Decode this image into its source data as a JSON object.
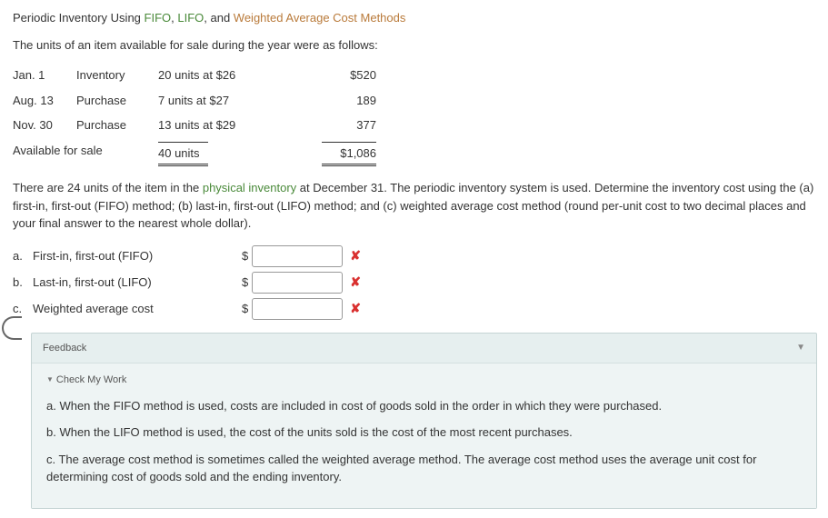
{
  "title": {
    "prefix": "Periodic Inventory Using ",
    "fifo": "FIFO",
    "sep": ", ",
    "lifo": "LIFO",
    "sep2": ", and ",
    "wac": "Weighted Average Cost Methods"
  },
  "intro": "The units of an item available for sale during the year were as follows:",
  "table": {
    "rows": [
      {
        "date": "Jan. 1",
        "desc": "Inventory",
        "units": "20 units at $26",
        "amount": "$520"
      },
      {
        "date": "Aug. 13",
        "desc": "Purchase",
        "units": "7 units at $27",
        "amount": "189"
      },
      {
        "date": "Nov. 30",
        "desc": "Purchase",
        "units": "13 units at $29",
        "amount": "377"
      }
    ],
    "total": {
      "label": "Available for sale",
      "units": "40 units",
      "amount": "$1,086"
    }
  },
  "question": {
    "p1a": "There are 24 units of the item in the ",
    "phys": "physical inventory",
    "p1b": " at December 31. The periodic inventory system is used. Determine the inventory cost using the (a) first-in, first-out (FIFO) method; (b) last-in, first-out (LIFO) method; and (c) weighted average cost method (round per-unit cost to two decimal places and your final answer to the nearest whole dollar)."
  },
  "answers": [
    {
      "letter": "a.",
      "label": "First-in, first-out (FIFO)",
      "value": "",
      "status": "wrong"
    },
    {
      "letter": "b.",
      "label": "Last-in, first-out (LIFO)",
      "value": "",
      "status": "wrong"
    },
    {
      "letter": "c.",
      "label": "Weighted average cost",
      "value": "",
      "status": "wrong"
    }
  ],
  "feedback": {
    "header": "Feedback",
    "check": "Check My Work",
    "items": [
      "a. When the FIFO method is used, costs are included in cost of goods sold in the order in which they were purchased.",
      "b. When the LIFO method is used, the cost of the units sold is the cost of the most recent purchases.",
      "c. The average cost method is sometimes called the weighted average method. The average cost method uses the average unit cost for determining cost of goods sold and the ending inventory."
    ]
  },
  "icons": {
    "x": "✘",
    "triDown": "▼"
  }
}
